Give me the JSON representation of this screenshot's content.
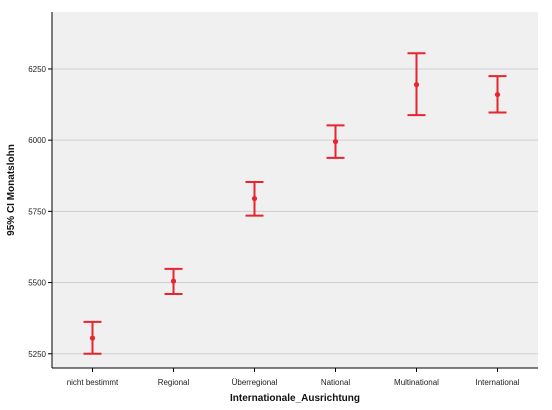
{
  "chart_data": {
    "type": "errorbar",
    "xlabel": "Internationale_Ausrichtung",
    "ylabel": "95% CI Monatslohn",
    "categories": [
      "nicht bestimmt",
      "Regional",
      "Überregional",
      "National",
      "Multinational",
      "International"
    ],
    "means": [
      5305,
      5505,
      5795,
      5995,
      6195,
      6160
    ],
    "lower": [
      5250,
      5460,
      5735,
      5938,
      6088,
      6097
    ],
    "upper": [
      5362,
      5548,
      5853,
      6052,
      6305,
      6225
    ],
    "ylim": [
      5200,
      6450
    ],
    "yticks": [
      5250,
      5500,
      5750,
      6000,
      6250
    ],
    "ytick_labels": [
      "5250",
      "5500",
      "5750",
      "6000",
      "6250"
    ],
    "grid": true,
    "colors": {
      "marker": "#e8242e",
      "plot_bg": "#f0f0f0",
      "grid": "#cfcfcf",
      "axis": "#000000"
    }
  }
}
